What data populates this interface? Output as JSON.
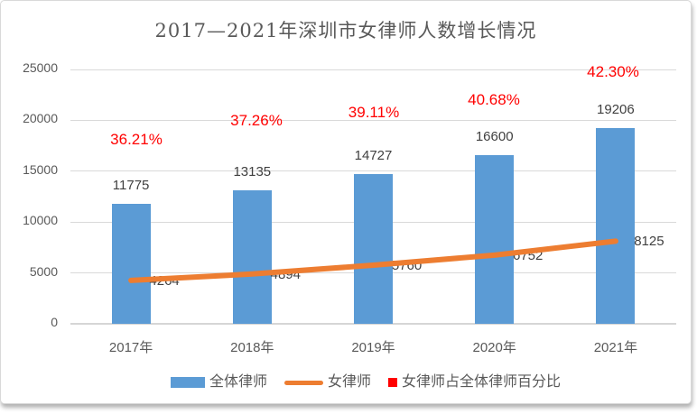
{
  "chart_data": {
    "type": "bar",
    "title": "2017—2021年深圳市女律师人数增长情况",
    "categories": [
      "2017年",
      "2018年",
      "2019年",
      "2020年",
      "2021年"
    ],
    "series": [
      {
        "name": "全体律师",
        "type": "bar",
        "color": "#5B9BD5",
        "values": [
          11775,
          13135,
          14727,
          16600,
          19206
        ]
      },
      {
        "name": "女律师",
        "type": "line",
        "color": "#ED7D31",
        "values": [
          4264,
          4894,
          5760,
          6752,
          8125
        ]
      },
      {
        "name": "女律师占全体律师百分比",
        "type": "percent-label",
        "color": "#FF0000",
        "labels": [
          "36.21%",
          "37.26%",
          "39.11%",
          "40.68%",
          "42.30%"
        ]
      }
    ],
    "xlabel": "",
    "ylabel": "",
    "ylim": [
      0,
      25000
    ],
    "yticks": [
      0,
      5000,
      10000,
      15000,
      20000,
      25000
    ],
    "grid": true,
    "legend_position": "bottom"
  },
  "colors": {
    "bar": "#5B9BD5",
    "line": "#ED7D31",
    "percent": "#FF0000",
    "grid": "#D9D9D9",
    "axis_text": "#595959",
    "value_text": "#404040",
    "title_text": "#595959",
    "card_border": "#D9D9D9"
  }
}
